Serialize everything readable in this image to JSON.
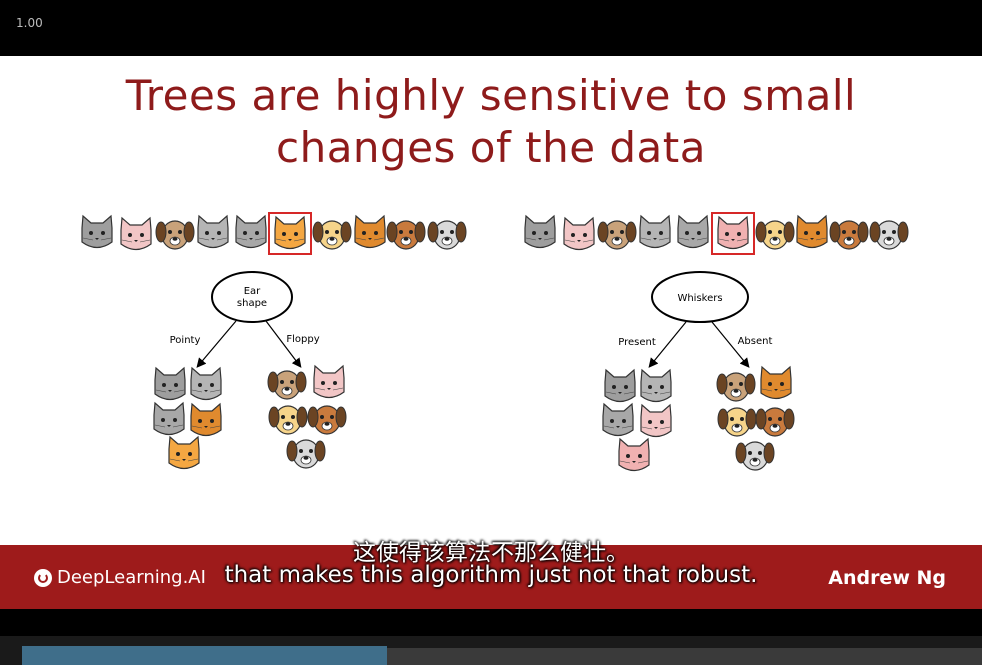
{
  "player": {
    "speed": "1.00",
    "progress_fraction": 0.38
  },
  "slide": {
    "title_line1": "Trees are highly sensitive to small",
    "title_line2": "changes of the data",
    "left_tree": {
      "root_label_line1": "Ear",
      "root_label_line2": "shape",
      "left_branch": "Pointy",
      "right_branch": "Floppy"
    },
    "right_tree": {
      "root_label": "Whiskers",
      "left_branch": "Present",
      "right_branch": "Absent"
    }
  },
  "footer": {
    "logo_text": "DeepLearning.AI",
    "presenter": "Andrew Ng"
  },
  "subtitles": {
    "chinese": "这使得该算法不那么健壮。",
    "english": "that makes this algorithm just not that robust."
  },
  "colors": {
    "title": "#8e1b1b",
    "footer": "#9e1b1b",
    "highlight_box": "#d62828"
  }
}
